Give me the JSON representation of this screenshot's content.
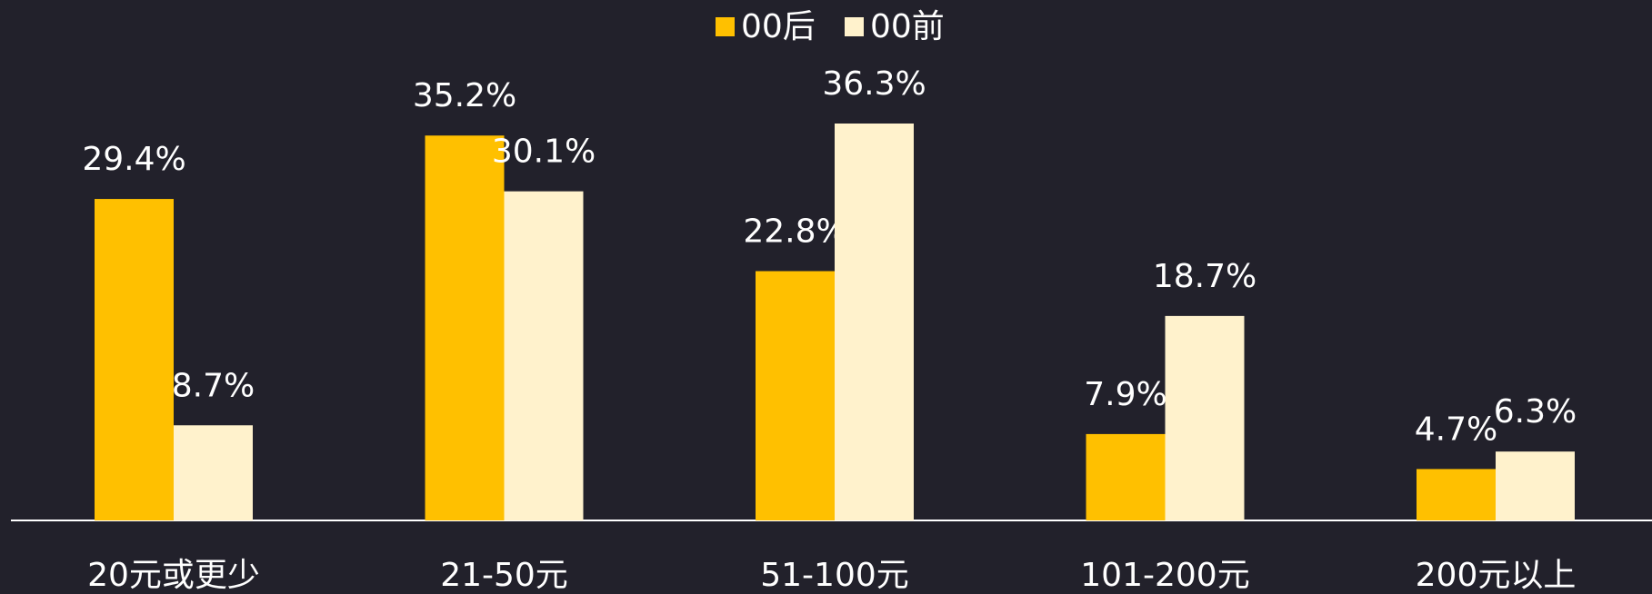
{
  "chart_data": {
    "type": "bar",
    "categories": [
      "20元或更少",
      "21-50元",
      "51-100元",
      "101-200元",
      "200元以上"
    ],
    "series": [
      {
        "name": "00后",
        "color": "#ffc000",
        "values": [
          29.4,
          35.2,
          22.8,
          7.9,
          4.7
        ],
        "value_labels": [
          "29.4%",
          "35.2%",
          "22.8%",
          "7.9%",
          "4.7%"
        ]
      },
      {
        "name": "00前",
        "color": "#fff2cc",
        "values": [
          8.7,
          30.1,
          36.3,
          18.7,
          6.3
        ],
        "value_labels": [
          "8.7%",
          "30.1%",
          "36.3%",
          "18.7%",
          "6.3%"
        ]
      }
    ],
    "legend": "top"
  }
}
